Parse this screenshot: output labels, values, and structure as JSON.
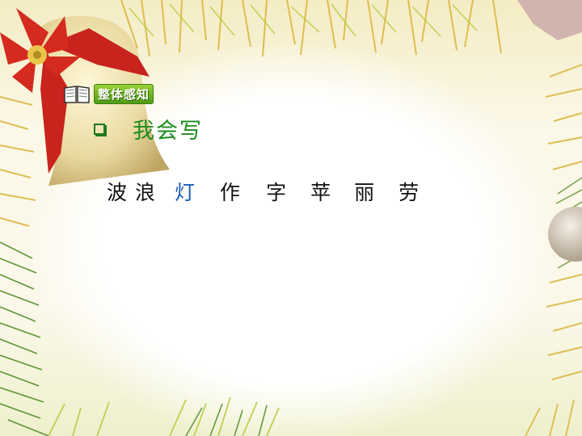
{
  "badge": {
    "icon": "open-book-icon",
    "label": "整体感知"
  },
  "heading": {
    "icon": "checkbox-bullet-icon",
    "text": "我会写"
  },
  "characters": [
    {
      "text": "波",
      "highlight": false
    },
    {
      "text": "浪",
      "highlight": false
    },
    {
      "text": "灯",
      "highlight": true
    },
    {
      "text": "作",
      "highlight": false
    },
    {
      "text": "字",
      "highlight": false
    },
    {
      "text": "苹",
      "highlight": false
    },
    {
      "text": "丽",
      "highlight": false
    },
    {
      "text": "劳",
      "highlight": false
    }
  ],
  "colors": {
    "heading": "#1e8c1e",
    "badge": "#5aa818",
    "highlight": "#1a5fb4",
    "text": "#111111"
  }
}
